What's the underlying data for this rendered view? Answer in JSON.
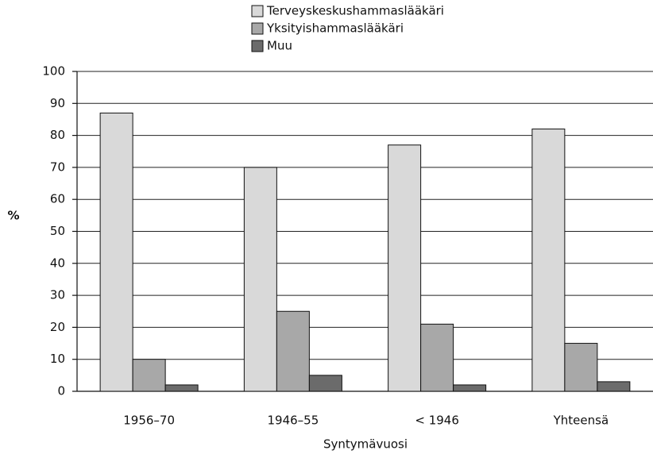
{
  "chart_data": {
    "type": "bar",
    "categories": [
      "1956–70",
      "1946–55",
      "< 1946",
      "Yhteensä"
    ],
    "series": [
      {
        "name": "Terveyskeskushammaslääkäri",
        "color": "#d9d9d9",
        "values": [
          87,
          70,
          77,
          82
        ]
      },
      {
        "name": "Yksityishammaslääkäri",
        "color": "#a8a8a8",
        "values": [
          10,
          25,
          21,
          15
        ]
      },
      {
        "name": "Muu",
        "color": "#6b6b6b",
        "values": [
          2,
          5,
          2,
          3
        ]
      }
    ],
    "ylabel": "%",
    "xlabel": "Syntymävuosi",
    "ylim": [
      0,
      100
    ],
    "yticks": [
      0,
      10,
      20,
      30,
      40,
      50,
      60,
      70,
      80,
      90,
      100
    ],
    "grid": true,
    "legend": "top"
  }
}
